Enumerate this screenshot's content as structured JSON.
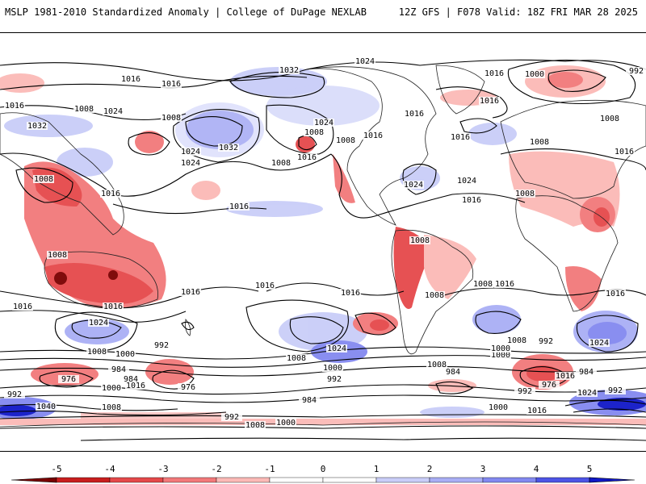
{
  "header": {
    "title": "MSLP 1981-2010 Standardized Anomaly | College of DuPage NEXLAB",
    "run_info": "12Z GFS | F078 Valid: 18Z FRI MAR 28 2025"
  },
  "colorbar": {
    "ticks": [
      "-5",
      "-4",
      "-3",
      "-2",
      "-1",
      "0",
      "1",
      "2",
      "3",
      "4",
      "5"
    ],
    "colors": {
      "neg5": "#7a0000",
      "neg4": "#c81e1e",
      "neg3": "#e5484a",
      "neg2": "#f2797a",
      "neg1": "#fbb9b6",
      "zero": "#ffffff",
      "pos1": "#c9cdf8",
      "pos2": "#a9aef5",
      "pos3": "#8389f0",
      "pos4": "#4d54e6",
      "pos5": "#1018c8"
    }
  },
  "map": {
    "isobar_labels": [
      {
        "text": "1024"
      },
      {
        "text": "1016"
      },
      {
        "text": "1016"
      },
      {
        "text": "1032"
      },
      {
        "text": "1016"
      },
      {
        "text": "992"
      },
      {
        "text": "1000"
      },
      {
        "text": "1016"
      },
      {
        "text": "1008"
      },
      {
        "text": "1024"
      },
      {
        "text": "1008"
      },
      {
        "text": "1016"
      },
      {
        "text": "1032"
      },
      {
        "text": "1024"
      },
      {
        "text": "1032"
      },
      {
        "text": "1008"
      },
      {
        "text": "1008"
      },
      {
        "text": "1024"
      },
      {
        "text": "1016"
      },
      {
        "text": "1016"
      },
      {
        "text": "1016"
      },
      {
        "text": "1008"
      },
      {
        "text": "1016"
      },
      {
        "text": "1024"
      },
      {
        "text": "1016"
      },
      {
        "text": "1024"
      },
      {
        "text": "1024"
      },
      {
        "text": "1008"
      },
      {
        "text": "1008"
      },
      {
        "text": "1016"
      },
      {
        "text": "1008"
      },
      {
        "text": "1016"
      },
      {
        "text": "1008"
      },
      {
        "text": "1008"
      },
      {
        "text": "1016"
      },
      {
        "text": "1016"
      },
      {
        "text": "1016"
      },
      {
        "text": "1016"
      },
      {
        "text": "1016"
      },
      {
        "text": "1016"
      },
      {
        "text": "1008"
      },
      {
        "text": "1016"
      },
      {
        "text": "1008"
      },
      {
        "text": "1024"
      },
      {
        "text": "1008"
      },
      {
        "text": "1000"
      },
      {
        "text": "992"
      },
      {
        "text": "984"
      },
      {
        "text": "984"
      },
      {
        "text": "976"
      },
      {
        "text": "1000"
      },
      {
        "text": "1016"
      },
      {
        "text": "976"
      },
      {
        "text": "992"
      },
      {
        "text": "1040"
      },
      {
        "text": "1008"
      },
      {
        "text": "1024"
      },
      {
        "text": "1008"
      },
      {
        "text": "1000"
      },
      {
        "text": "992"
      },
      {
        "text": "984"
      },
      {
        "text": "992"
      },
      {
        "text": "1008"
      },
      {
        "text": "1000"
      },
      {
        "text": "1008"
      },
      {
        "text": "1000"
      },
      {
        "text": "992"
      },
      {
        "text": "976"
      },
      {
        "text": "984"
      },
      {
        "text": "984"
      },
      {
        "text": "992"
      },
      {
        "text": "1024"
      },
      {
        "text": "1000"
      },
      {
        "text": "1016"
      },
      {
        "text": "992"
      },
      {
        "text": "1008"
      },
      {
        "text": "1000"
      },
      {
        "text": "1008"
      },
      {
        "text": "1024"
      },
      {
        "text": "1016"
      },
      {
        "text": "1016"
      }
    ]
  }
}
